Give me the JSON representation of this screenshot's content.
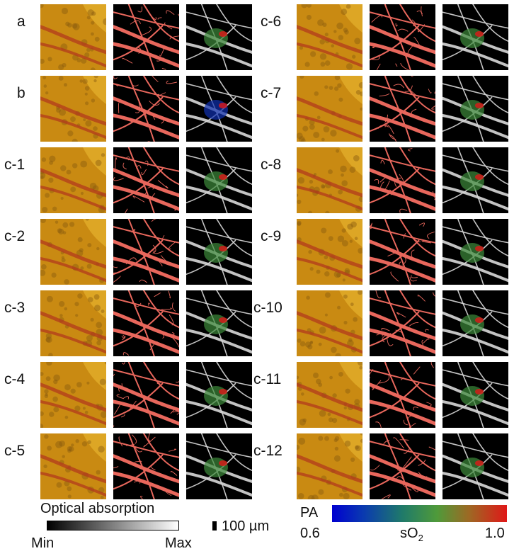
{
  "figure": {
    "rows_left": [
      "a",
      "b",
      "c-1",
      "c-2",
      "c-3",
      "c-4",
      "c-5"
    ],
    "rows_right": [
      "c-6",
      "c-7",
      "c-8",
      "c-9",
      "c-10",
      "c-11",
      "c-12"
    ]
  },
  "legend": {
    "optical_title": "Optical absorption",
    "optical_min": "Min",
    "optical_max": "Max",
    "scale_bar": "100 µm",
    "pa_label": "PA",
    "so2_min": "0.6",
    "so2_max": "1.0",
    "so2_label": "sO",
    "so2_sub": "2"
  },
  "colors": {
    "tissue_base": "#c98a12",
    "tissue_light": "#e2ad2a",
    "vessel_red": "#e8675c",
    "background_black": "#000000",
    "so2_low": "#0000d0",
    "so2_high": "#e01818"
  }
}
